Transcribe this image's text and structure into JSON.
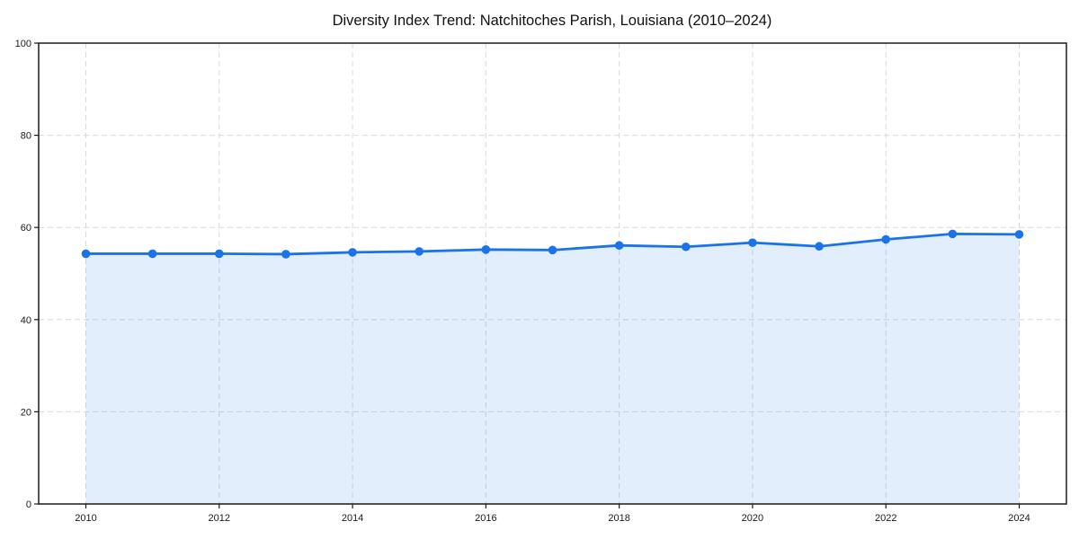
{
  "chart_data": {
    "type": "line",
    "title": "Diversity Index Trend: Natchitoches Parish, Louisiana (2010–2024)",
    "series_name": "Diversity Index",
    "x": [
      2010,
      2011,
      2012,
      2013,
      2014,
      2015,
      2016,
      2017,
      2018,
      2019,
      2020,
      2021,
      2022,
      2023,
      2024
    ],
    "values": [
      54.3,
      54.3,
      54.3,
      54.2,
      54.6,
      54.8,
      55.2,
      55.1,
      56.1,
      55.8,
      56.7,
      55.9,
      57.4,
      58.6,
      58.5
    ],
    "xlabel": "",
    "ylabel": "",
    "xlim": [
      2010,
      2024
    ],
    "ylim": [
      0,
      100
    ],
    "xticks": [
      2010,
      2012,
      2014,
      2016,
      2018,
      2020,
      2022,
      2024
    ],
    "yticks": [
      0,
      20,
      40,
      60,
      80,
      100
    ],
    "grid": "dashed, both axes, at labeled ticks",
    "legend": "none",
    "marker": "circle",
    "area_fill_below_line": true,
    "colors": {
      "line": "#1a73e8",
      "marker": "#1a73e8",
      "fill": "#1a73e8",
      "fill_opacity": 0.12,
      "grid": "#d9d9d9",
      "axis": "#1a1a1a",
      "title_text": "#111111",
      "tick_text": "#1a1a1a",
      "background": "#ffffff"
    }
  }
}
